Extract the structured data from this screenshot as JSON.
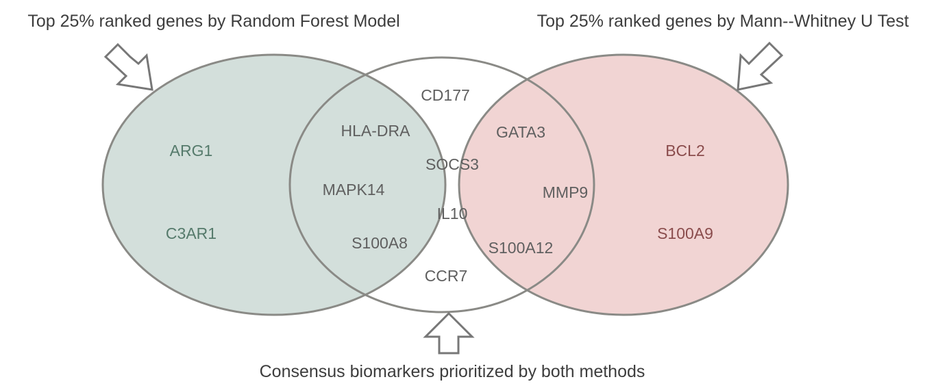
{
  "labels": {
    "left_set": "Top 25% ranked genes by Random Forest Model",
    "right_set": "Top 25% ranked genes by Mann--Whitney U Test",
    "intersection": "Consensus biomarkers prioritized by both methods"
  },
  "sets": {
    "left_only": [
      "ARG1",
      "C3AR1"
    ],
    "right_only": [
      "BCL2",
      "S100A9"
    ],
    "both": [
      "CD177",
      "HLA-DRA",
      "GATA3",
      "SOCS3",
      "MAPK14",
      "MMP9",
      "IL10",
      "S100A8",
      "S100A12",
      "CCR7"
    ]
  },
  "colors": {
    "left_fill": "#d3dfdb",
    "right_fill": "#f1d4d3",
    "overlap_fill": "#cbc3bf",
    "outline": "#8a8a86",
    "left_text": "#557a6b",
    "right_text": "#8a4c4c",
    "overlap_text": "#5f5f5f",
    "label_text": "#3d3d3d",
    "arrow_fill": "#ffffff",
    "arrow_stroke": "#777777"
  }
}
